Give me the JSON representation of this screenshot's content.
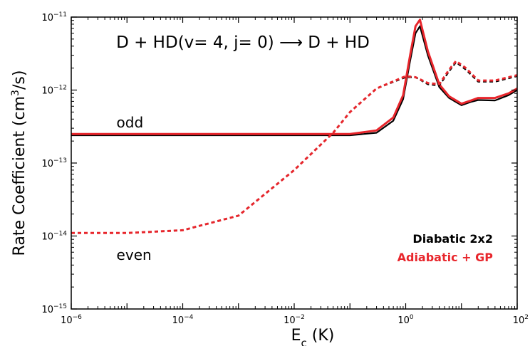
{
  "chart_data": {
    "type": "line",
    "title": "D + HD(v= 4, j= 0) ⟶ D + HD",
    "xlabel": {
      "base": "E",
      "sub": "c",
      "tail": "  (K)"
    },
    "ylabel": {
      "pre": "Rate Coefficient  (cm",
      "sup": "3",
      "post": "/s)"
    },
    "xscale": "log",
    "yscale": "log",
    "xlim": [
      1e-06,
      100
    ],
    "ylim": [
      1e-15,
      1e-11
    ],
    "grid": false,
    "legend_position": "lower-right",
    "x_ticks": [
      {
        "value": 1e-06,
        "base": "10",
        "exp": "−6"
      },
      {
        "value": 0.0001,
        "base": "10",
        "exp": "−4"
      },
      {
        "value": 0.01,
        "base": "10",
        "exp": "−2"
      },
      {
        "value": 1,
        "base": "10",
        "exp": "0"
      },
      {
        "value": 100,
        "base": "10",
        "exp": "2"
      }
    ],
    "y_ticks": [
      {
        "value": 1e-15,
        "base": "10",
        "exp": "−15"
      },
      {
        "value": 1e-14,
        "base": "10",
        "exp": "−14"
      },
      {
        "value": 1e-13,
        "base": "10",
        "exp": "−13"
      },
      {
        "value": 1e-12,
        "base": "10",
        "exp": "−12"
      },
      {
        "value": 1e-11,
        "base": "10",
        "exp": "−11"
      }
    ],
    "annotations": [
      {
        "text": "odd",
        "x": 2e-06,
        "y": 3.6e-13
      },
      {
        "text": "even",
        "x": 2e-06,
        "y": 5.5e-15
      }
    ],
    "series": [
      {
        "name": "Diabatic 2x2",
        "parity": "odd",
        "color": "#000000",
        "dash": "solid",
        "x": [
          1e-06,
          1e-05,
          0.0001,
          0.001,
          0.01,
          0.1,
          0.3,
          0.6,
          0.9,
          1.2,
          1.5,
          1.8,
          2.5,
          4,
          6,
          10,
          15,
          20,
          40,
          70,
          100
        ],
        "y": [
          2.4e-13,
          2.4e-13,
          2.4e-13,
          2.4e-13,
          2.4e-13,
          2.4e-13,
          2.6e-13,
          3.8e-13,
          7.5e-13,
          2.5e-12,
          6e-12,
          7.5e-12,
          3e-12,
          1.1e-12,
          7.8e-13,
          6.2e-13,
          6.9e-13,
          7.3e-13,
          7.2e-13,
          8.5e-13,
          1e-12
        ]
      },
      {
        "name": "Adiabatic + GP",
        "parity": "odd",
        "color": "#e8262c",
        "dash": "solid",
        "x": [
          1e-06,
          1e-05,
          0.0001,
          0.001,
          0.01,
          0.1,
          0.3,
          0.6,
          0.9,
          1.2,
          1.5,
          1.8,
          2.5,
          4,
          6,
          10,
          15,
          20,
          40,
          70,
          100
        ],
        "y": [
          2.5e-13,
          2.5e-13,
          2.5e-13,
          2.5e-13,
          2.5e-13,
          2.5e-13,
          2.8e-13,
          4.2e-13,
          8.5e-13,
          3e-12,
          7.5e-12,
          9.2e-12,
          3.4e-12,
          1.2e-12,
          8.2e-13,
          6.5e-13,
          7.2e-13,
          7.8e-13,
          7.8e-13,
          9e-13,
          1.05e-12
        ]
      },
      {
        "name": "Diabatic 2x2",
        "parity": "even",
        "color": "#000000",
        "dash": "dashed",
        "x": [
          1e-06,
          1e-05,
          0.0001,
          0.001,
          0.01,
          0.05,
          0.1,
          0.3,
          1,
          1.5,
          2.5,
          4,
          6,
          8,
          12,
          20,
          40,
          100
        ],
        "y": [
          1.1e-14,
          1.1e-14,
          1.2e-14,
          1.9e-14,
          8e-14,
          2.6e-13,
          5e-13,
          1.05e-12,
          1.5e-12,
          1.5e-12,
          1.2e-12,
          1.15e-12,
          1.8e-12,
          2.4e-12,
          1.9e-12,
          1.3e-12,
          1.3e-12,
          1.55e-12
        ]
      },
      {
        "name": "Adiabatic + GP",
        "parity": "even",
        "color": "#e8262c",
        "dash": "dashed",
        "x": [
          1e-06,
          1e-05,
          0.0001,
          0.001,
          0.01,
          0.05,
          0.1,
          0.3,
          1,
          1.5,
          2.5,
          4,
          6,
          8,
          12,
          20,
          40,
          100
        ],
        "y": [
          1.1e-14,
          1.1e-14,
          1.2e-14,
          1.9e-14,
          8e-14,
          2.6e-13,
          5e-13,
          1.05e-12,
          1.55e-12,
          1.5e-12,
          1.25e-12,
          1.2e-12,
          1.9e-12,
          2.5e-12,
          2e-12,
          1.35e-12,
          1.35e-12,
          1.6e-12
        ]
      }
    ],
    "legend": [
      {
        "label": "Diabatic 2x2",
        "color": "#000000"
      },
      {
        "label": "Adiabatic + GP",
        "color": "#e8262c"
      }
    ]
  }
}
